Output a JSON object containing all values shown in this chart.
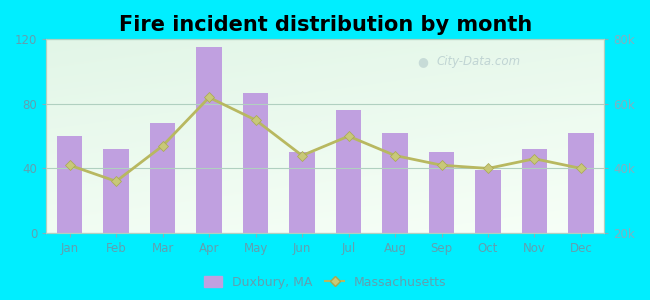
{
  "title": "Fire incident distribution by month",
  "months": [
    "Jan",
    "Feb",
    "Mar",
    "Apr",
    "May",
    "Jun",
    "Jul",
    "Aug",
    "Sep",
    "Oct",
    "Nov",
    "Dec"
  ],
  "duxbury_values": [
    60,
    52,
    68,
    115,
    87,
    50,
    76,
    62,
    50,
    39,
    52,
    62
  ],
  "massachusetts_values": [
    41000,
    36000,
    47000,
    62000,
    55000,
    44000,
    50000,
    44000,
    41000,
    40000,
    43000,
    40000
  ],
  "bar_color": "#c0a0e0",
  "line_color": "#b8b860",
  "marker_color": "#c8c878",
  "marker_edge_color": "#a8a850",
  "outer_background": "#00eeff",
  "ylim_left": [
    0,
    120
  ],
  "ylim_right": [
    20000,
    80000
  ],
  "yticks_left": [
    0,
    40,
    80,
    120
  ],
  "yticks_right": [
    20000,
    40000,
    60000,
    80000
  ],
  "ytick_labels_right": [
    "20k",
    "40k",
    "60k",
    "80k"
  ],
  "legend_label_bar": "Duxbury, MA",
  "legend_label_line": "Massachusetts",
  "watermark": "City-Data.com",
  "title_fontsize": 15,
  "axis_label_color": "#60a0b0",
  "grid_color": "#b0d0c0",
  "tick_color": "#80b0c0"
}
